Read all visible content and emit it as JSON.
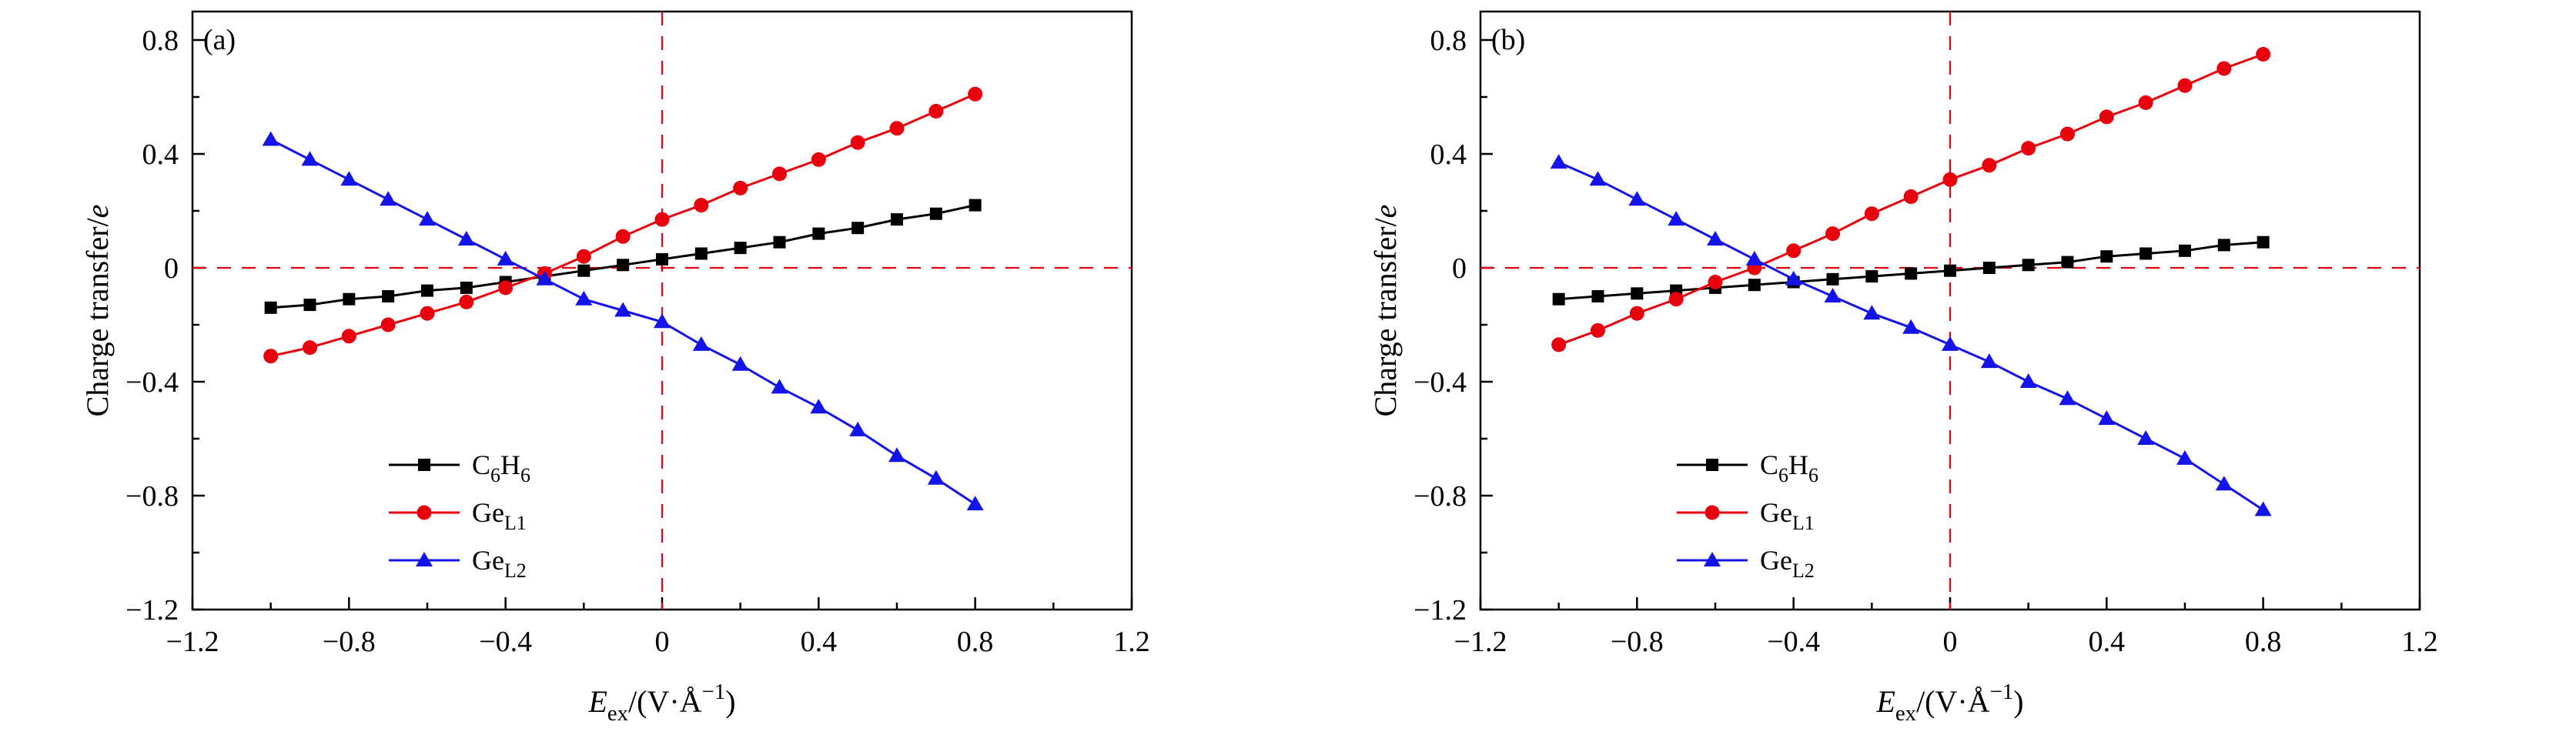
{
  "figure": {
    "background": "#ffffff",
    "axis_color": "#000000",
    "reference_line_color": "#e8000d",
    "series_colors": {
      "black": "#000000",
      "red": "#e8000d",
      "blue": "#1414e8"
    }
  },
  "chart_data": [
    {
      "type": "line",
      "panel_label": "(a)",
      "xlabel_plain": "E_ex/(V·Å^-1)",
      "ylabel_plain": "Charge transfer/e",
      "xlabel_rich": [
        {
          "text": "E",
          "style": "italic"
        },
        {
          "text": "ex",
          "style": "sub"
        },
        {
          "text": "/(V·Å",
          "style": "normal"
        },
        {
          "text": "−1",
          "style": "sup"
        },
        {
          "text": ")",
          "style": "normal"
        }
      ],
      "ylabel_rich": [
        {
          "text": "Charge transfer/",
          "style": "normal"
        },
        {
          "text": "e",
          "style": "italic"
        }
      ],
      "xlim": [
        -1.2,
        1.2
      ],
      "ylim": [
        -1.2,
        0.8
      ],
      "xticks": [
        -1.2,
        -0.8,
        -0.4,
        0,
        0.4,
        0.8,
        1.2
      ],
      "yticks": [
        -1.2,
        -0.8,
        -0.4,
        0,
        0.4,
        0.8
      ],
      "grid": false,
      "legend_position": "lower-left",
      "reference_lines": [
        {
          "axis": "x",
          "value": 0
        },
        {
          "axis": "y",
          "value": 0
        }
      ],
      "x": [
        -1.0,
        -0.9,
        -0.8,
        -0.7,
        -0.6,
        -0.5,
        -0.4,
        -0.3,
        -0.2,
        -0.1,
        0,
        0.1,
        0.2,
        0.3,
        0.4,
        0.5,
        0.6,
        0.7,
        0.8
      ],
      "series": [
        {
          "name": "C6H6",
          "label_rich": [
            {
              "text": "C"
            },
            {
              "text": "6",
              "style": "sub"
            },
            {
              "text": "H"
            },
            {
              "text": "6",
              "style": "sub"
            }
          ],
          "color": "#000000",
          "marker": "square",
          "values": [
            -0.14,
            -0.13,
            -0.11,
            -0.1,
            -0.08,
            -0.07,
            -0.05,
            -0.03,
            -0.01,
            0.01,
            0.03,
            0.05,
            0.07,
            0.09,
            0.12,
            0.14,
            0.17,
            0.19,
            0.22
          ]
        },
        {
          "name": "GeL1",
          "label_rich": [
            {
              "text": "Ge"
            },
            {
              "text": "L1",
              "style": "sub"
            }
          ],
          "color": "#e8000d",
          "marker": "circle",
          "values": [
            -0.31,
            -0.28,
            -0.24,
            -0.2,
            -0.16,
            -0.12,
            -0.07,
            -0.02,
            0.04,
            0.11,
            0.17,
            0.22,
            0.28,
            0.33,
            0.38,
            0.44,
            0.49,
            0.55,
            0.61
          ]
        },
        {
          "name": "GeL2",
          "label_rich": [
            {
              "text": "Ge"
            },
            {
              "text": "L2",
              "style": "sub"
            }
          ],
          "color": "#1414e8",
          "marker": "triangle",
          "values": [
            0.45,
            0.38,
            0.31,
            0.24,
            0.17,
            0.1,
            0.03,
            -0.04,
            -0.11,
            -0.15,
            -0.19,
            -0.27,
            -0.34,
            -0.42,
            -0.49,
            -0.57,
            -0.66,
            -0.74,
            -0.83
          ]
        }
      ]
    },
    {
      "type": "line",
      "panel_label": "(b)",
      "xlabel_plain": "E_ex/(V·Å^-1)",
      "ylabel_plain": "Charge transfer/e",
      "xlabel_rich": [
        {
          "text": "E",
          "style": "italic"
        },
        {
          "text": "ex",
          "style": "sub"
        },
        {
          "text": "/(V·Å",
          "style": "normal"
        },
        {
          "text": "−1",
          "style": "sup"
        },
        {
          "text": ")",
          "style": "normal"
        }
      ],
      "ylabel_rich": [
        {
          "text": "Charge transfer/",
          "style": "normal"
        },
        {
          "text": "e",
          "style": "italic"
        }
      ],
      "xlim": [
        -1.2,
        1.2
      ],
      "ylim": [
        -1.2,
        0.8
      ],
      "xticks": [
        -1.2,
        -0.8,
        -0.4,
        0,
        0.4,
        0.8,
        1.2
      ],
      "yticks": [
        -1.2,
        -0.8,
        -0.4,
        0,
        0.4,
        0.8
      ],
      "grid": false,
      "legend_position": "lower-left",
      "reference_lines": [
        {
          "axis": "x",
          "value": 0
        },
        {
          "axis": "y",
          "value": 0
        }
      ],
      "x": [
        -1.0,
        -0.9,
        -0.8,
        -0.7,
        -0.6,
        -0.5,
        -0.4,
        -0.3,
        -0.2,
        -0.1,
        0,
        0.1,
        0.2,
        0.3,
        0.4,
        0.5,
        0.6,
        0.7,
        0.8
      ],
      "series": [
        {
          "name": "C6H6",
          "label_rich": [
            {
              "text": "C"
            },
            {
              "text": "6",
              "style": "sub"
            },
            {
              "text": "H"
            },
            {
              "text": "6",
              "style": "sub"
            }
          ],
          "color": "#000000",
          "marker": "square",
          "values": [
            -0.11,
            -0.1,
            -0.09,
            -0.08,
            -0.07,
            -0.06,
            -0.05,
            -0.04,
            -0.03,
            -0.02,
            -0.01,
            0.0,
            0.01,
            0.02,
            0.04,
            0.05,
            0.06,
            0.08,
            0.09
          ]
        },
        {
          "name": "GeL1",
          "label_rich": [
            {
              "text": "Ge"
            },
            {
              "text": "L1",
              "style": "sub"
            }
          ],
          "color": "#e8000d",
          "marker": "circle",
          "values": [
            -0.27,
            -0.22,
            -0.16,
            -0.11,
            -0.05,
            0.0,
            0.06,
            0.12,
            0.19,
            0.25,
            0.31,
            0.36,
            0.42,
            0.47,
            0.53,
            0.58,
            0.64,
            0.7,
            0.75
          ]
        },
        {
          "name": "GeL2",
          "label_rich": [
            {
              "text": "Ge"
            },
            {
              "text": "L2",
              "style": "sub"
            }
          ],
          "color": "#1414e8",
          "marker": "triangle",
          "values": [
            0.37,
            0.31,
            0.24,
            0.17,
            0.1,
            0.03,
            -0.04,
            -0.1,
            -0.16,
            -0.21,
            -0.27,
            -0.33,
            -0.4,
            -0.46,
            -0.53,
            -0.6,
            -0.67,
            -0.76,
            -0.85
          ]
        }
      ]
    }
  ]
}
